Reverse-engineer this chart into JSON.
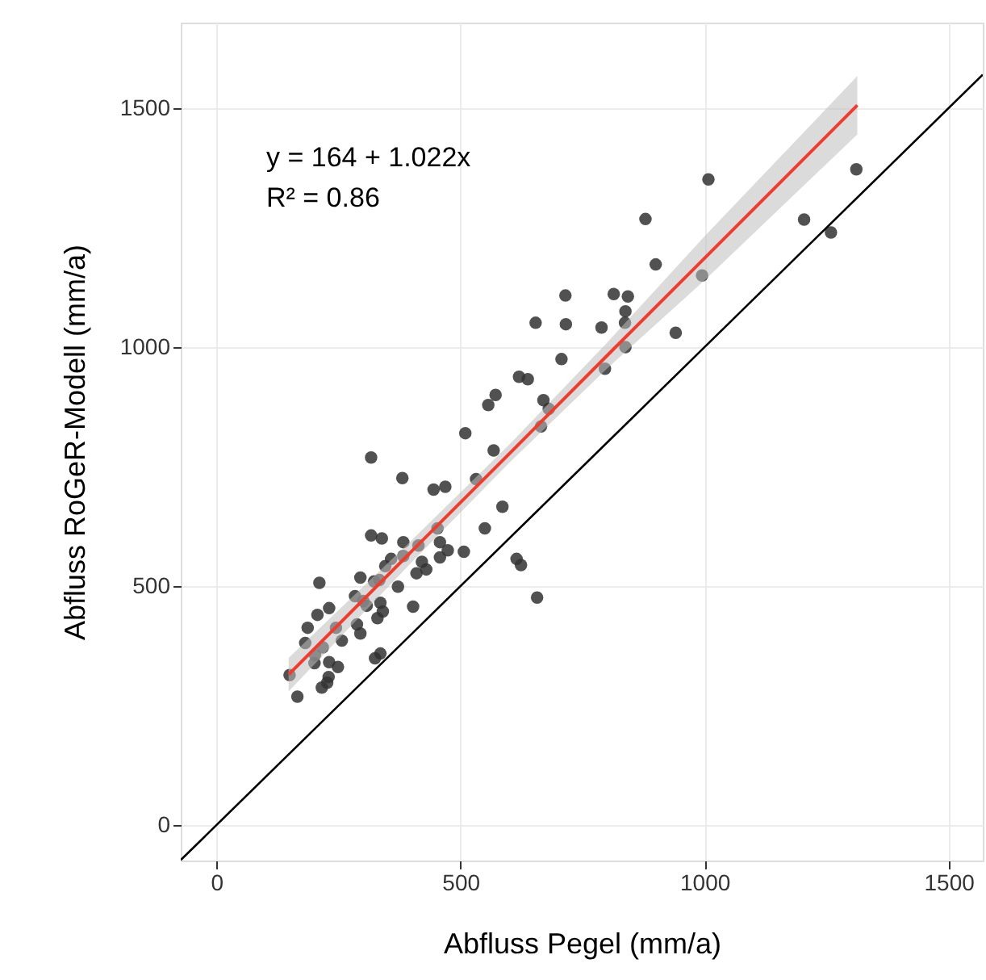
{
  "chart_data": {
    "type": "scatter",
    "xlabel": "Abfluss Pegel (mm/a)",
    "ylabel": "Abfluss RoGeR-Modell (mm/a)",
    "xlim": [
      -73,
      1570
    ],
    "ylim": [
      -74,
      1679
    ],
    "xticks": [
      0,
      500,
      1000,
      1500
    ],
    "yticks": [
      0,
      500,
      1000,
      1500
    ],
    "grid": true,
    "marker": "circle",
    "annotations": [
      "y = 164 + 1.022x",
      "R² = 0.86"
    ],
    "series": [
      {
        "type": "scatter",
        "color": "#333333",
        "x": [
          620,
          638,
          572,
          557,
          670,
          681,
          665,
          510,
          568,
          317,
          381,
          532,
          445,
          469,
          586,
          453,
          550,
          317,
          339,
          383,
          414,
          458,
          474,
          507,
          458,
          358,
          383,
          615,
          624,
          421,
          430,
          410,
          346,
          295,
          323,
          334,
          211,
          372,
          657,
          284,
          301,
          336,
          308,
          231,
          403,
          341,
          207,
          330,
          187,
          245,
          288,
          295,
          182,
          257,
          218,
          202,
          336,
          325,
          201,
          231,
          249,
          150,
          230,
          227,
          216,
          166,
          1311,
          1008,
          1204,
          1259,
          879,
          900,
          995,
          715,
          814,
          843,
          838,
          837,
          654,
          716,
          789,
          941,
          838,
          707,
          796
        ],
        "values": [
          938,
          933,
          900,
          879,
          889,
          871,
          834,
          820,
          784,
          769,
          726,
          724,
          702,
          708,
          666,
          621,
          621,
          606,
          600,
          592,
          585,
          592,
          575,
          572,
          560,
          557,
          563,
          557,
          544,
          551,
          535,
          527,
          542,
          518,
          510,
          513,
          507,
          499,
          476,
          479,
          469,
          465,
          459,
          454,
          457,
          447,
          440,
          433,
          413,
          413,
          420,
          401,
          381,
          386,
          372,
          356,
          359,
          349,
          339,
          341,
          331,
          314,
          310,
          298,
          288,
          269,
          1372,
          1351,
          1267,
          1240,
          1268,
          1173,
          1150,
          1108,
          1111,
          1106,
          1075,
          1051,
          1051,
          1048,
          1041,
          1030,
          1000,
          975,
          955
        ]
      },
      {
        "type": "line",
        "color": "#f03c2c",
        "line_style": "solid",
        "marker": "none",
        "x": [
          148,
          400,
          600,
          800,
          1000,
          1313
        ],
        "values": [
          315,
          573,
          777,
          982,
          1186,
          1506
        ],
        "lower": [
          280,
          550,
          758,
          955,
          1140,
          1445
        ],
        "upper": [
          350,
          596,
          796,
          1009,
          1232,
          1567
        ]
      },
      {
        "type": "line",
        "color": "#000000",
        "line_style": "solid",
        "marker": "none",
        "x": [
          -73,
          1570
        ],
        "values": [
          -73,
          1570
        ]
      }
    ]
  }
}
